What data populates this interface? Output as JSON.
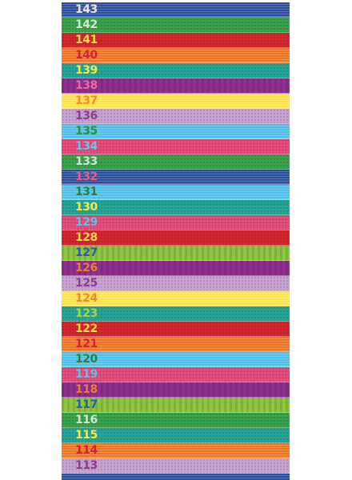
{
  "bands": [
    {
      "label": "143",
      "color": "#2a4f9c",
      "text_color": "#e9e3ee",
      "pattern": "hstripes"
    },
    {
      "label": "142",
      "color": "#3aa24a",
      "text_color": "#cfe9d0",
      "pattern": "dots"
    },
    {
      "label": "141",
      "color": "#d4262e",
      "text_color": "#f5d84a",
      "pattern": "dots"
    },
    {
      "label": "140",
      "color": "#ee7424",
      "text_color": "#d1242c",
      "pattern": "hstripes"
    },
    {
      "label": "139",
      "color": "#26a596",
      "text_color": "#f2e94d",
      "pattern": "dots"
    },
    {
      "label": "138",
      "color": "#8f2f8f",
      "text_color": "#ee6aa4",
      "pattern": "vstripes"
    },
    {
      "label": "137",
      "color": "#fbe24a",
      "text_color": "#f08a2a",
      "pattern": "hstripes"
    },
    {
      "label": "136",
      "color": "#c8a2cf",
      "text_color": "#8a3b90",
      "pattern": "dots"
    },
    {
      "label": "135",
      "color": "#4fbfe9",
      "text_color": "#2e8f3e",
      "pattern": "hstripes"
    },
    {
      "label": "134",
      "color": "#e94f7e",
      "text_color": "#63c5ea",
      "pattern": "grid"
    },
    {
      "label": "133",
      "color": "#3aa24a",
      "text_color": "#cfe9d0",
      "pattern": "dots"
    },
    {
      "label": "132",
      "color": "#2a4f9c",
      "text_color": "#ec5a8a",
      "pattern": "hstripes"
    },
    {
      "label": "131",
      "color": "#4fbfe9",
      "text_color": "#2b7f3a",
      "pattern": "hstripes"
    },
    {
      "label": "130",
      "color": "#26a596",
      "text_color": "#f2e94d",
      "pattern": "dots"
    },
    {
      "label": "129",
      "color": "#e94f7e",
      "text_color": "#5fc2ea",
      "pattern": "grid"
    },
    {
      "label": "128",
      "color": "#d4262e",
      "text_color": "#f5d84a",
      "pattern": "dots"
    },
    {
      "label": "127",
      "color": "#8cc63f",
      "text_color": "#2a5aa8",
      "pattern": "vstripes"
    },
    {
      "label": "126",
      "color": "#8f2f8f",
      "text_color": "#f07a38",
      "pattern": "vstripes"
    },
    {
      "label": "125",
      "color": "#c8a2cf",
      "text_color": "#8a3b90",
      "pattern": "dots"
    },
    {
      "label": "124",
      "color": "#fbe24a",
      "text_color": "#f08a2a",
      "pattern": "hstripes"
    },
    {
      "label": "123",
      "color": "#26a596",
      "text_color": "#a8d64a",
      "pattern": "dots"
    },
    {
      "label": "122",
      "color": "#d4262e",
      "text_color": "#f5d84a",
      "pattern": "dots"
    },
    {
      "label": "121",
      "color": "#ee7424",
      "text_color": "#d1242c",
      "pattern": "hstripes"
    },
    {
      "label": "120",
      "color": "#4fbfe9",
      "text_color": "#2b7f3a",
      "pattern": "hstripes"
    },
    {
      "label": "119",
      "color": "#e94f7e",
      "text_color": "#5fc2ea",
      "pattern": "grid"
    },
    {
      "label": "118",
      "color": "#8f2f8f",
      "text_color": "#f07a38",
      "pattern": "vstripes"
    },
    {
      "label": "117",
      "color": "#8cc63f",
      "text_color": "#2a5aa8",
      "pattern": "vstripes"
    },
    {
      "label": "116",
      "color": "#3aa24a",
      "text_color": "#cfe9d0",
      "pattern": "dots"
    },
    {
      "label": "115",
      "color": "#26a596",
      "text_color": "#f2e94d",
      "pattern": "dots"
    },
    {
      "label": "114",
      "color": "#ee7424",
      "text_color": "#d1242c",
      "pattern": "hstripes"
    },
    {
      "label": "113",
      "color": "#c8a2cf",
      "text_color": "#8a3b90",
      "pattern": "dots"
    },
    {
      "label": "",
      "color": "#2a4f9c",
      "text_color": "#ec5a8a",
      "pattern": "hstripes"
    }
  ]
}
